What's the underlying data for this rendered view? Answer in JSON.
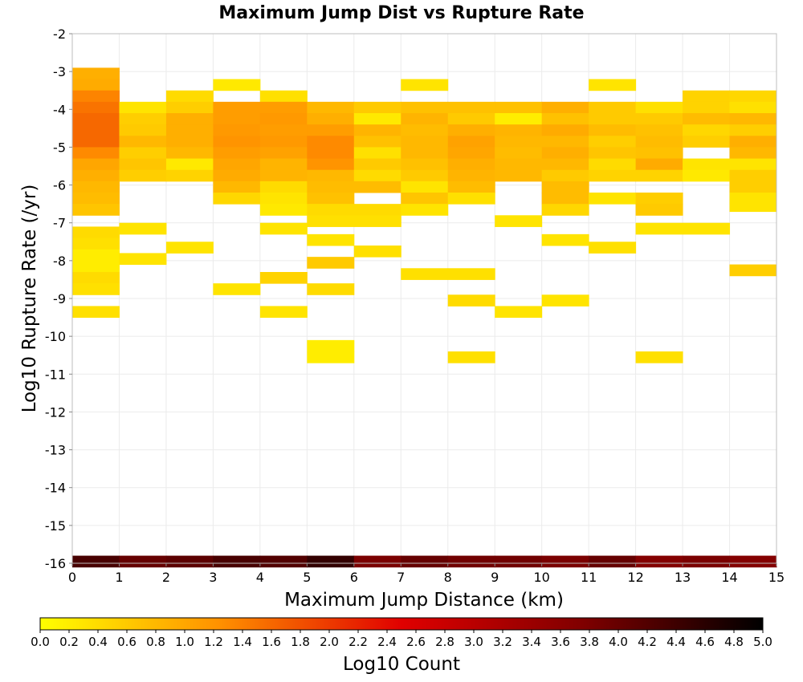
{
  "chart_data": {
    "type": "heatmap",
    "title": "Maximum Jump Dist vs Rupture Rate",
    "xlabel": "Maximum Jump Distance (km)",
    "ylabel": "Log10 Rupture Rate (/yr)",
    "xlim": [
      0,
      15
    ],
    "ylim": [
      -16,
      -2
    ],
    "x_ticks": [
      "0",
      "1",
      "2",
      "3",
      "4",
      "5",
      "6",
      "7",
      "8",
      "9",
      "10",
      "11",
      "12",
      "13",
      "14",
      "15"
    ],
    "y_ticks": [
      "-2",
      "-3",
      "-4",
      "-5",
      "-6",
      "-7",
      "-8",
      "-9",
      "-10",
      "-11",
      "-12",
      "-13",
      "-14",
      "-15",
      "-16"
    ],
    "grid": true,
    "bin_x": 1.0,
    "bin_y": 0.3,
    "colorbar": {
      "label": "Log10 Count",
      "range": [
        0.0,
        5.0
      ],
      "ticks": [
        "0.0",
        "0.2",
        "0.4",
        "0.6",
        "0.8",
        "1.0",
        "1.2",
        "1.4",
        "1.6",
        "1.8",
        "2.0",
        "2.2",
        "2.4",
        "2.6",
        "2.8",
        "3.0",
        "3.2",
        "3.4",
        "3.6",
        "3.8",
        "4.0",
        "4.2",
        "4.4",
        "4.6",
        "4.8",
        "5.0"
      ],
      "colors": [
        "#ffff00",
        "#ff9000",
        "#e00000",
        "#800000",
        "#000000"
      ]
    },
    "cells": [
      [
        0,
        -3.05,
        0.9
      ],
      [
        0,
        -3.35,
        0.95
      ],
      [
        0,
        -3.65,
        1.35
      ],
      [
        0,
        -3.95,
        1.5
      ],
      [
        0,
        -4.25,
        1.6
      ],
      [
        0,
        -4.55,
        1.6
      ],
      [
        0,
        -4.85,
        1.6
      ],
      [
        0,
        -5.15,
        1.3
      ],
      [
        0,
        -5.45,
        1.0
      ],
      [
        0,
        -5.75,
        0.9
      ],
      [
        0,
        -6.05,
        0.8
      ],
      [
        0,
        -6.35,
        0.75
      ],
      [
        0,
        -6.65,
        0.65
      ],
      [
        0,
        -7.25,
        0.4
      ],
      [
        0,
        -7.55,
        0.35
      ],
      [
        0,
        -7.85,
        0.2
      ],
      [
        0,
        -8.15,
        0.2
      ],
      [
        0,
        -8.45,
        0.4
      ],
      [
        0,
        -8.75,
        0.35
      ],
      [
        0,
        -9.35,
        0.35
      ],
      [
        1,
        -3.95,
        0.3
      ],
      [
        1,
        -4.25,
        0.55
      ],
      [
        1,
        -4.55,
        0.6
      ],
      [
        1,
        -4.85,
        0.8
      ],
      [
        1,
        -5.15,
        0.55
      ],
      [
        1,
        -5.45,
        0.65
      ],
      [
        1,
        -5.75,
        0.55
      ],
      [
        1,
        -7.15,
        0.3
      ],
      [
        1,
        -7.95,
        0.3
      ],
      [
        2,
        -3.65,
        0.4
      ],
      [
        2,
        -3.95,
        0.55
      ],
      [
        2,
        -4.25,
        0.9
      ],
      [
        2,
        -4.55,
        0.9
      ],
      [
        2,
        -4.85,
        0.9
      ],
      [
        2,
        -5.15,
        0.8
      ],
      [
        2,
        -5.45,
        0.25
      ],
      [
        2,
        -5.75,
        0.5
      ],
      [
        2,
        -7.65,
        0.3
      ],
      [
        3,
        -3.35,
        0.25
      ],
      [
        3,
        -3.95,
        1.1
      ],
      [
        3,
        -4.25,
        1.1
      ],
      [
        3,
        -4.55,
        1.15
      ],
      [
        3,
        -4.85,
        1.2
      ],
      [
        3,
        -5.15,
        1.1
      ],
      [
        3,
        -5.45,
        1.0
      ],
      [
        3,
        -5.75,
        0.95
      ],
      [
        3,
        -6.05,
        0.8
      ],
      [
        3,
        -6.35,
        0.45
      ],
      [
        3,
        -8.75,
        0.3
      ],
      [
        4,
        -3.65,
        0.35
      ],
      [
        4,
        -3.95,
        1.1
      ],
      [
        4,
        -4.25,
        1.15
      ],
      [
        4,
        -4.55,
        1.1
      ],
      [
        4,
        -4.85,
        1.15
      ],
      [
        4,
        -5.15,
        1.05
      ],
      [
        4,
        -5.45,
        0.85
      ],
      [
        4,
        -5.75,
        0.85
      ],
      [
        4,
        -6.05,
        0.4
      ],
      [
        4,
        -6.35,
        0.3
      ],
      [
        4,
        -6.65,
        0.25
      ],
      [
        4,
        -7.15,
        0.3
      ],
      [
        4,
        -8.45,
        0.5
      ],
      [
        4,
        -9.35,
        0.3
      ],
      [
        5,
        -3.95,
        0.8
      ],
      [
        5,
        -4.25,
        0.9
      ],
      [
        5,
        -4.55,
        1.1
      ],
      [
        5,
        -4.85,
        1.3
      ],
      [
        5,
        -5.15,
        1.3
      ],
      [
        5,
        -5.45,
        1.2
      ],
      [
        5,
        -5.75,
        0.8
      ],
      [
        5,
        -6.05,
        0.75
      ],
      [
        5,
        -6.35,
        0.7
      ],
      [
        5,
        -6.65,
        0.4
      ],
      [
        5,
        -6.95,
        0.35
      ],
      [
        5,
        -7.45,
        0.3
      ],
      [
        5,
        -8.05,
        0.6
      ],
      [
        5,
        -8.75,
        0.4
      ],
      [
        5,
        -10.25,
        0.2
      ],
      [
        5,
        -10.55,
        0.2
      ],
      [
        6,
        -3.95,
        0.6
      ],
      [
        6,
        -4.25,
        0.25
      ],
      [
        6,
        -4.55,
        0.85
      ],
      [
        6,
        -4.85,
        0.7
      ],
      [
        6,
        -5.15,
        0.35
      ],
      [
        6,
        -5.45,
        0.6
      ],
      [
        6,
        -5.75,
        0.4
      ],
      [
        6,
        -6.05,
        0.75
      ],
      [
        6,
        -6.65,
        0.4
      ],
      [
        6,
        -6.95,
        0.35
      ],
      [
        6,
        -7.75,
        0.35
      ],
      [
        7,
        -3.35,
        0.3
      ],
      [
        7,
        -3.95,
        0.7
      ],
      [
        7,
        -4.25,
        0.85
      ],
      [
        7,
        -4.55,
        0.75
      ],
      [
        7,
        -4.85,
        0.8
      ],
      [
        7,
        -5.15,
        0.8
      ],
      [
        7,
        -5.45,
        0.7
      ],
      [
        7,
        -5.75,
        0.6
      ],
      [
        7,
        -6.05,
        0.3
      ],
      [
        7,
        -6.35,
        0.65
      ],
      [
        7,
        -6.65,
        0.3
      ],
      [
        7,
        -8.35,
        0.35
      ],
      [
        8,
        -3.95,
        0.7
      ],
      [
        8,
        -4.25,
        0.6
      ],
      [
        8,
        -4.55,
        0.9
      ],
      [
        8,
        -4.85,
        1.05
      ],
      [
        8,
        -5.15,
        1.0
      ],
      [
        8,
        -5.45,
        0.9
      ],
      [
        8,
        -5.75,
        0.85
      ],
      [
        8,
        -6.05,
        0.75
      ],
      [
        8,
        -6.35,
        0.35
      ],
      [
        8,
        -8.35,
        0.35
      ],
      [
        8,
        -9.05,
        0.4
      ],
      [
        8,
        -10.55,
        0.35
      ],
      [
        9,
        -3.95,
        0.7
      ],
      [
        9,
        -4.25,
        0.2
      ],
      [
        9,
        -4.55,
        0.85
      ],
      [
        9,
        -4.85,
        0.8
      ],
      [
        9,
        -5.15,
        0.75
      ],
      [
        9,
        -5.45,
        0.8
      ],
      [
        9,
        -5.75,
        0.8
      ],
      [
        9,
        -6.95,
        0.3
      ],
      [
        9,
        -9.35,
        0.3
      ],
      [
        10,
        -3.95,
        0.9
      ],
      [
        10,
        -4.25,
        0.7
      ],
      [
        10,
        -4.55,
        0.95
      ],
      [
        10,
        -4.85,
        0.8
      ],
      [
        10,
        -5.15,
        0.9
      ],
      [
        10,
        -5.45,
        0.8
      ],
      [
        10,
        -5.75,
        0.6
      ],
      [
        10,
        -6.05,
        0.75
      ],
      [
        10,
        -6.35,
        0.75
      ],
      [
        10,
        -6.65,
        0.45
      ],
      [
        10,
        -7.45,
        0.3
      ],
      [
        10,
        -9.05,
        0.3
      ],
      [
        11,
        -3.35,
        0.3
      ],
      [
        11,
        -3.95,
        0.6
      ],
      [
        11,
        -4.25,
        0.6
      ],
      [
        11,
        -4.55,
        0.75
      ],
      [
        11,
        -4.85,
        0.55
      ],
      [
        11,
        -5.15,
        0.65
      ],
      [
        11,
        -5.45,
        0.4
      ],
      [
        11,
        -5.75,
        0.5
      ],
      [
        11,
        -6.35,
        0.3
      ],
      [
        11,
        -7.65,
        0.35
      ],
      [
        12,
        -3.95,
        0.35
      ],
      [
        12,
        -4.25,
        0.6
      ],
      [
        12,
        -4.55,
        0.7
      ],
      [
        12,
        -4.85,
        0.75
      ],
      [
        12,
        -5.15,
        0.7
      ],
      [
        12,
        -5.45,
        0.95
      ],
      [
        12,
        -5.75,
        0.5
      ],
      [
        12,
        -6.35,
        0.55
      ],
      [
        12,
        -6.65,
        0.6
      ],
      [
        12,
        -7.15,
        0.3
      ],
      [
        12,
        -10.55,
        0.35
      ],
      [
        13,
        -3.65,
        0.5
      ],
      [
        13,
        -3.95,
        0.5
      ],
      [
        13,
        -4.25,
        0.75
      ],
      [
        13,
        -4.55,
        0.45
      ],
      [
        13,
        -4.85,
        0.55
      ],
      [
        13,
        -5.45,
        0.3
      ],
      [
        13,
        -5.75,
        0.25
      ],
      [
        13,
        -7.15,
        0.3
      ],
      [
        14,
        -3.65,
        0.45
      ],
      [
        14,
        -3.95,
        0.35
      ],
      [
        14,
        -4.25,
        0.8
      ],
      [
        14,
        -4.55,
        0.55
      ],
      [
        14,
        -4.85,
        0.9
      ],
      [
        14,
        -5.15,
        0.8
      ],
      [
        14,
        -5.45,
        0.3
      ],
      [
        14,
        -5.75,
        0.55
      ],
      [
        14,
        -6.05,
        0.55
      ],
      [
        14,
        -6.35,
        0.3
      ],
      [
        14,
        -6.55,
        0.3
      ],
      [
        14,
        -8.25,
        0.55
      ],
      [
        0,
        -15.95,
        4.3
      ],
      [
        1,
        -15.95,
        4.0
      ],
      [
        2,
        -15.95,
        4.1
      ],
      [
        3,
        -15.95,
        4.3
      ],
      [
        4,
        -15.95,
        4.2
      ],
      [
        5,
        -15.95,
        4.5
      ],
      [
        6,
        -15.95,
        3.8
      ],
      [
        7,
        -15.95,
        4.0
      ],
      [
        8,
        -15.95,
        3.9
      ],
      [
        9,
        -15.95,
        3.9
      ],
      [
        10,
        -15.95,
        3.8
      ],
      [
        11,
        -15.95,
        4.0
      ],
      [
        12,
        -15.95,
        3.7
      ],
      [
        13,
        -15.95,
        3.8
      ],
      [
        14,
        -15.95,
        3.7
      ]
    ]
  }
}
